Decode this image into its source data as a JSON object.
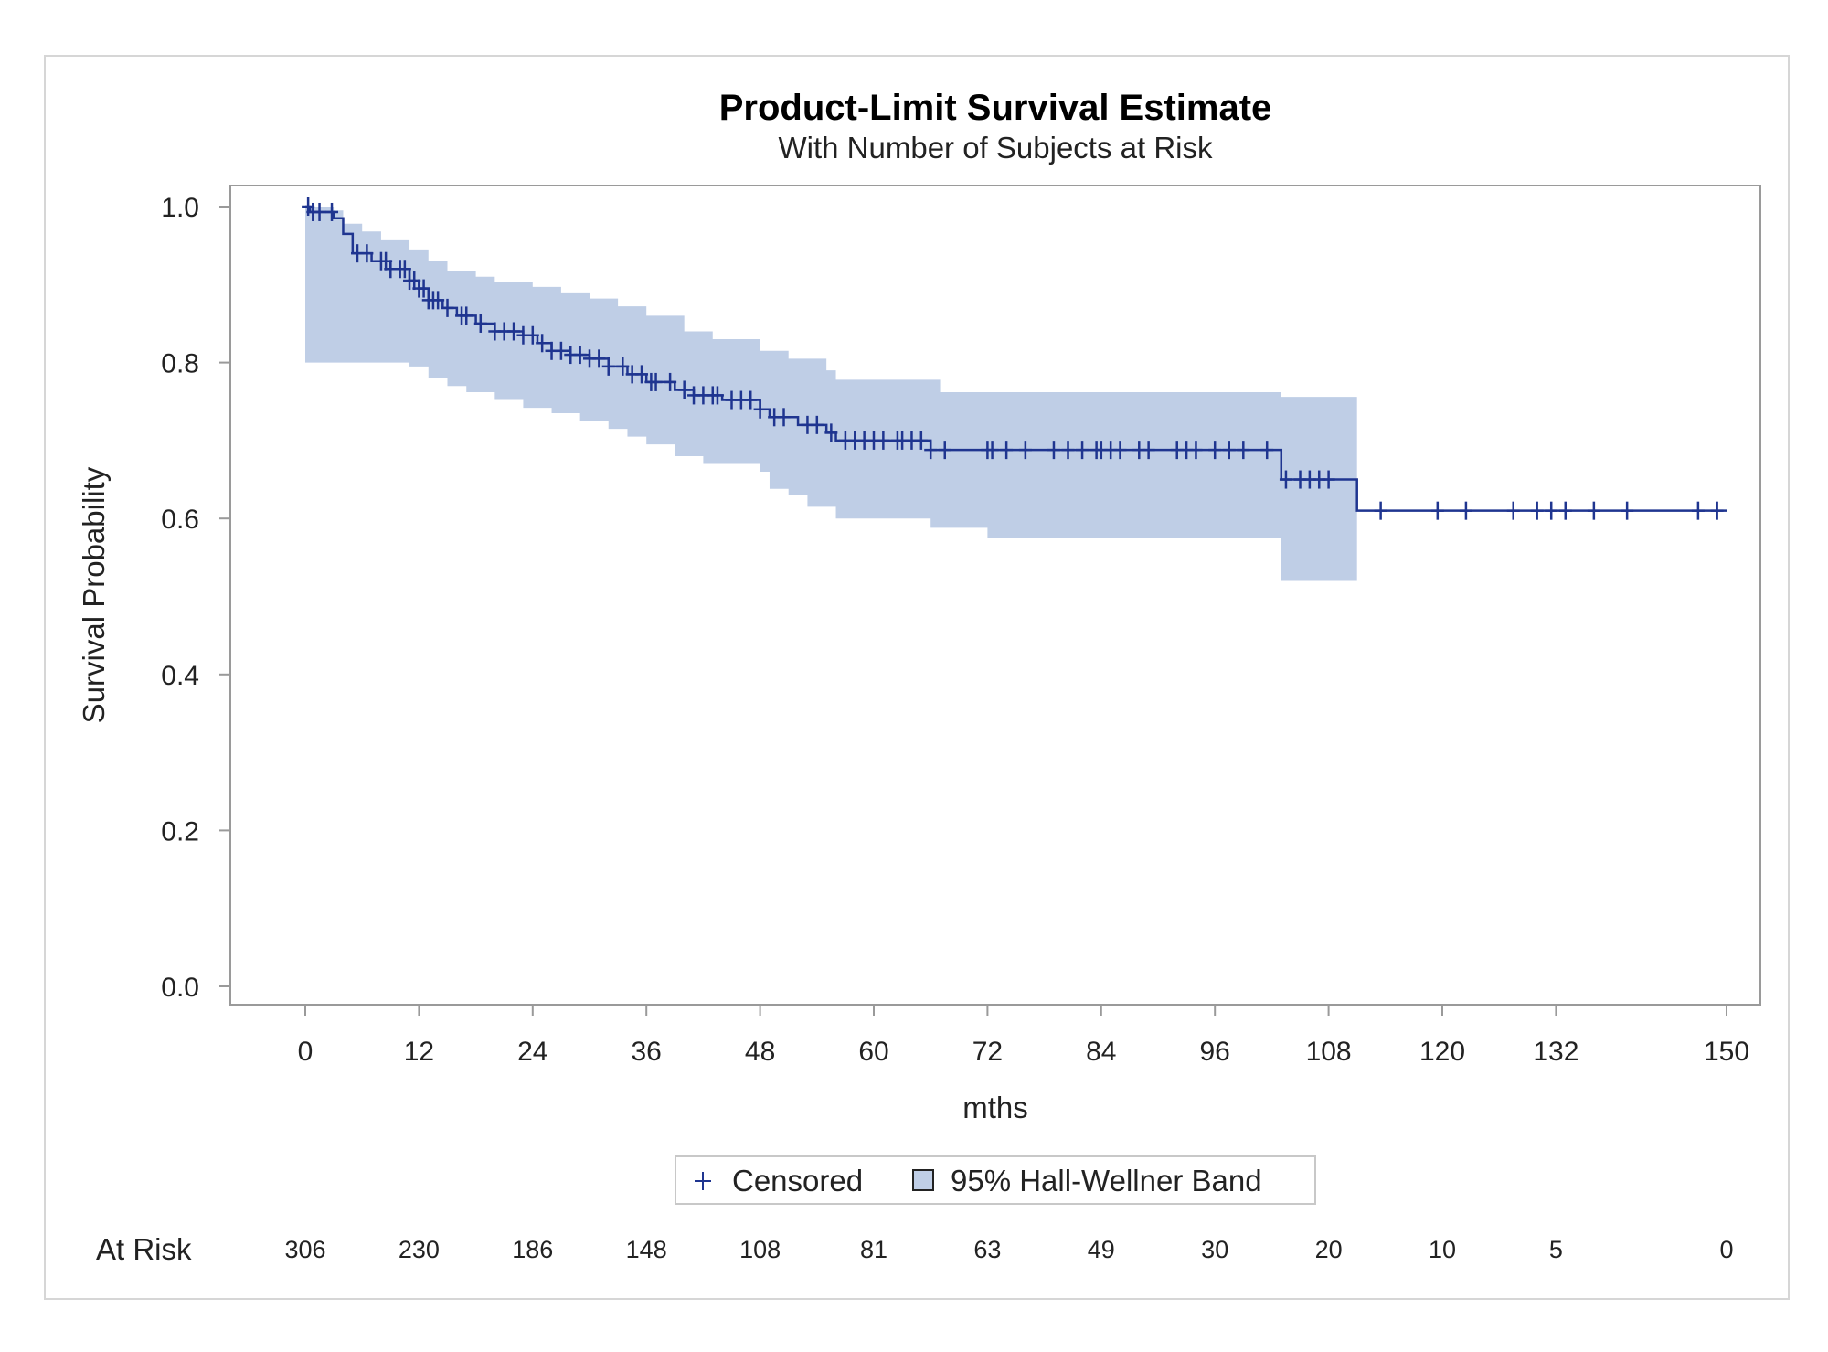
{
  "chart_data": {
    "type": "line",
    "title": "Product-Limit Survival Estimate",
    "subtitle": "With Number of Subjects at Risk",
    "xlabel": "mths",
    "ylabel": "Survival Probability",
    "xlim": [
      -4,
      154
    ],
    "ylim": [
      -0.025,
      1.025
    ],
    "xticks": [
      0,
      12,
      24,
      36,
      48,
      60,
      72,
      84,
      96,
      108,
      120,
      132,
      150
    ],
    "yticks": [
      0.0,
      0.2,
      0.4,
      0.6,
      0.8,
      1.0
    ],
    "ytick_labels": [
      "0.0",
      "0.2",
      "0.4",
      "0.6",
      "0.8",
      "1.0"
    ],
    "grid": false,
    "colors": {
      "line": "#1f3590",
      "band": "#bfcee6",
      "frame": "#9a9a9a"
    },
    "survival_steps": [
      [
        0,
        1.0
      ],
      [
        0.5,
        0.993
      ],
      [
        3,
        0.985
      ],
      [
        4,
        0.965
      ],
      [
        5,
        0.94
      ],
      [
        7,
        0.93
      ],
      [
        9,
        0.92
      ],
      [
        11,
        0.905
      ],
      [
        12,
        0.895
      ],
      [
        13,
        0.88
      ],
      [
        14.5,
        0.87
      ],
      [
        16,
        0.86
      ],
      [
        18,
        0.85
      ],
      [
        20,
        0.84
      ],
      [
        23,
        0.835
      ],
      [
        24.5,
        0.825
      ],
      [
        26,
        0.815
      ],
      [
        28,
        0.81
      ],
      [
        30,
        0.805
      ],
      [
        32,
        0.795
      ],
      [
        34,
        0.785
      ],
      [
        36,
        0.775
      ],
      [
        39,
        0.765
      ],
      [
        41,
        0.758
      ],
      [
        44,
        0.752
      ],
      [
        48,
        0.74
      ],
      [
        49,
        0.73
      ],
      [
        52,
        0.72
      ],
      [
        55,
        0.71
      ],
      [
        56,
        0.7
      ],
      [
        66,
        0.688
      ],
      [
        103,
        0.65
      ],
      [
        111,
        0.61
      ],
      [
        150,
        0.61
      ]
    ],
    "band_upper": [
      [
        0,
        1.0
      ],
      [
        3,
        0.995
      ],
      [
        4,
        0.978
      ],
      [
        6,
        0.968
      ],
      [
        8,
        0.958
      ],
      [
        11,
        0.945
      ],
      [
        13,
        0.93
      ],
      [
        15,
        0.918
      ],
      [
        18,
        0.91
      ],
      [
        20,
        0.903
      ],
      [
        24,
        0.897
      ],
      [
        27,
        0.89
      ],
      [
        30,
        0.882
      ],
      [
        33,
        0.872
      ],
      [
        36,
        0.86
      ],
      [
        40,
        0.84
      ],
      [
        43,
        0.83
      ],
      [
        48,
        0.815
      ],
      [
        51,
        0.805
      ],
      [
        55,
        0.79
      ],
      [
        56,
        0.778
      ],
      [
        67,
        0.762
      ],
      [
        103,
        0.756
      ],
      [
        111,
        0.756
      ]
    ],
    "band_lower": [
      [
        0,
        0.8
      ],
      [
        8,
        0.8
      ],
      [
        11,
        0.795
      ],
      [
        13,
        0.78
      ],
      [
        15,
        0.77
      ],
      [
        17,
        0.762
      ],
      [
        20,
        0.752
      ],
      [
        23,
        0.742
      ],
      [
        26,
        0.735
      ],
      [
        29,
        0.725
      ],
      [
        32,
        0.715
      ],
      [
        34,
        0.705
      ],
      [
        36,
        0.695
      ],
      [
        39,
        0.68
      ],
      [
        42,
        0.67
      ],
      [
        48,
        0.66
      ],
      [
        49,
        0.638
      ],
      [
        51,
        0.63
      ],
      [
        53,
        0.615
      ],
      [
        56,
        0.6
      ],
      [
        66,
        0.588
      ],
      [
        72,
        0.575
      ],
      [
        103,
        0.52
      ],
      [
        111,
        0.52
      ]
    ],
    "censored_times": [
      0.3,
      0.8,
      1.5,
      2.8,
      5.5,
      6.5,
      8,
      8.5,
      9,
      10,
      10.5,
      11,
      11.5,
      12,
      12.5,
      13,
      13.5,
      14,
      15,
      16.5,
      17,
      18.5,
      20,
      21,
      22,
      23,
      24,
      25,
      26,
      27,
      28,
      29,
      30,
      31,
      32,
      33.5,
      34.5,
      35.5,
      36.5,
      37,
      38.5,
      40,
      41,
      42,
      43,
      43.5,
      45,
      46,
      47,
      48,
      49.5,
      50.5,
      53,
      54,
      55.5,
      57,
      58,
      59,
      60,
      61,
      62.5,
      63,
      64,
      65,
      66,
      67.5,
      72,
      72.5,
      74,
      76,
      79,
      80.5,
      82,
      83.5,
      84,
      85,
      86,
      88,
      89,
      92,
      93,
      94,
      96,
      97.5,
      99,
      101.5,
      103.5,
      105,
      106,
      107,
      108,
      113.5,
      119.5,
      122.5,
      127.5,
      130,
      131.5,
      133,
      136,
      139.5,
      147,
      149
    ],
    "legend": {
      "placement": "bottom-center",
      "entries": [
        {
          "label": "Censored",
          "symbol": "+"
        },
        {
          "label": "95% Hall-Wellner Band",
          "symbol": "box"
        }
      ]
    },
    "at_risk": {
      "label": "At Risk",
      "times": [
        0,
        12,
        24,
        36,
        48,
        60,
        72,
        84,
        96,
        108,
        120,
        132,
        150
      ],
      "counts": [
        "306",
        "230",
        "186",
        "148",
        "108",
        "81",
        "63",
        "49",
        "30",
        "20",
        "10",
        "5",
        "0"
      ]
    }
  }
}
